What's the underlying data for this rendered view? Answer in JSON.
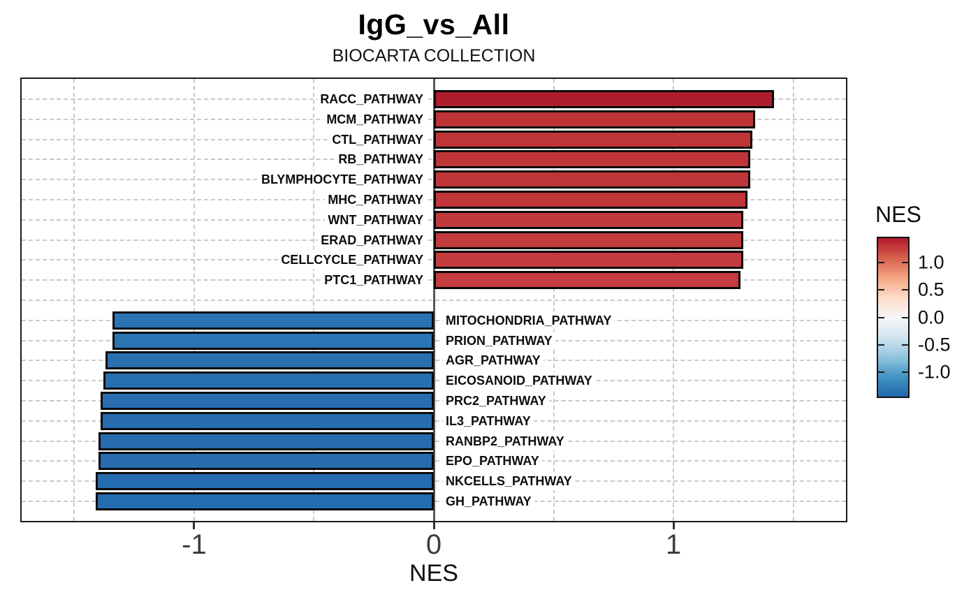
{
  "header": {
    "title": "IgG_vs_All",
    "subtitle": "BIOCARTA COLLECTION"
  },
  "chart_data": {
    "type": "bar",
    "orientation": "horizontal",
    "title": "IgG_vs_All",
    "subtitle": "BIOCARTA COLLECTION",
    "xlabel": "NES",
    "xlim": [
      -1.72,
      1.72
    ],
    "x_ticks": [
      -1,
      0,
      1
    ],
    "x_tick_labels": [
      "-1",
      "0",
      "1"
    ],
    "x_gridlines": [
      -1.5,
      -1,
      -0.5,
      0.5,
      1,
      1.5
    ],
    "grid": true,
    "zero_line_color": "#55585b",
    "bar_outline_color": "#0a0a0a",
    "bars": [
      {
        "label": "RACC_PATHWAY",
        "value": 1.42,
        "color": "#AE1C2E"
      },
      {
        "label": "MCM_PATHWAY",
        "value": 1.34,
        "color": "#BE3336"
      },
      {
        "label": "CTL_PATHWAY",
        "value": 1.33,
        "color": "#BF3537"
      },
      {
        "label": "RB_PATHWAY",
        "value": 1.32,
        "color": "#C03638"
      },
      {
        "label": "BLYMPHOCYTE_PATHWAY",
        "value": 1.32,
        "color": "#C03638"
      },
      {
        "label": "MHC_PATHWAY",
        "value": 1.31,
        "color": "#C13739"
      },
      {
        "label": "WNT_PATHWAY",
        "value": 1.29,
        "color": "#C2393B"
      },
      {
        "label": "ERAD_PATHWAY",
        "value": 1.29,
        "color": "#C33B3C"
      },
      {
        "label": "CELLCYCLE_PATHWAY",
        "value": 1.29,
        "color": "#C33B3C"
      },
      {
        "label": "PTC1_PATHWAY",
        "value": 1.28,
        "color": "#C43C3D"
      },
      {
        "label": "MITOCHONDRIA_PATHWAY",
        "value": -1.34,
        "color": "#2B74B3"
      },
      {
        "label": "PRION_PATHWAY",
        "value": -1.34,
        "color": "#2B74B3"
      },
      {
        "label": "AGR_PATHWAY",
        "value": -1.37,
        "color": "#2970B1"
      },
      {
        "label": "EICOSANOID_PATHWAY",
        "value": -1.38,
        "color": "#286FB0"
      },
      {
        "label": "PRC2_PATHWAY",
        "value": -1.39,
        "color": "#276DB0"
      },
      {
        "label": "IL3_PATHWAY",
        "value": -1.39,
        "color": "#276DB0"
      },
      {
        "label": "RANBP2_PATHWAY",
        "value": -1.4,
        "color": "#266CAF"
      },
      {
        "label": "EPO_PATHWAY",
        "value": -1.4,
        "color": "#266CAF"
      },
      {
        "label": "NKCELLS_PATHWAY",
        "value": -1.41,
        "color": "#256BAF"
      },
      {
        "label": "GH_PATHWAY",
        "value": -1.41,
        "color": "#256BAF"
      }
    ],
    "legend": {
      "title": "NES",
      "kind": "colorbar",
      "range": [
        -1.45,
        1.45
      ],
      "ticks": [
        1.0,
        0.5,
        0.0,
        -0.5,
        -1.0
      ],
      "tick_labels": [
        "1.0",
        "0.5",
        "0.0",
        "-0.5",
        "-1.0"
      ],
      "gradient_stops": [
        "#B2182B",
        "#D6604D",
        "#F4A582",
        "#FDDBC7",
        "#F7F7F7",
        "#D1E5F0",
        "#92C5DE",
        "#4393C3",
        "#2166AC"
      ]
    }
  }
}
